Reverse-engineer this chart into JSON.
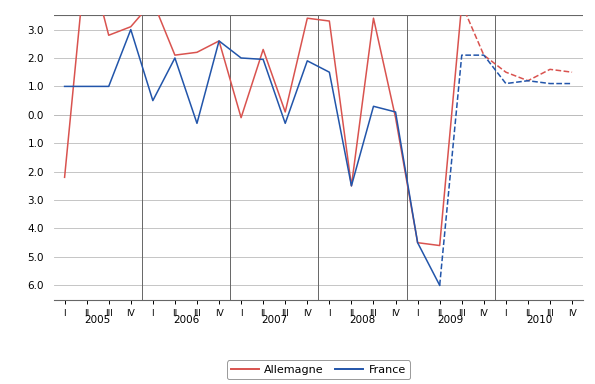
{
  "allemagne_color": "#d9534f",
  "france_color": "#2255aa",
  "background_color": "#ffffff",
  "grid_color": "#bbbbbb",
  "ylim": [
    -6.5,
    3.5
  ],
  "ytick_positions": [
    3.0,
    2.0,
    1.0,
    0.0,
    -1.0,
    -2.0,
    -3.0,
    -4.0,
    -5.0,
    -6.0
  ],
  "ytick_labels": [
    "3.0",
    "2.0",
    "1.0",
    "0.0",
    "1.0",
    "2.0",
    "3.0",
    "4.0",
    "5.0",
    "6.0"
  ],
  "allemagne_solid_x": [
    0,
    1,
    2,
    3,
    4,
    5,
    6,
    7,
    8,
    9,
    10,
    11,
    12,
    13,
    14,
    15,
    16,
    17,
    18
  ],
  "allemagne_solid_y": [
    -2.2,
    5.8,
    2.8,
    3.1,
    4.0,
    2.1,
    2.2,
    2.6,
    -0.1,
    2.3,
    0.1,
    3.4,
    3.3,
    -2.5,
    3.4,
    -0.1,
    -4.5,
    -4.6,
    3.9
  ],
  "allemagne_dashed_x": [
    18,
    19,
    20,
    21,
    22,
    23
  ],
  "allemagne_dashed_y": [
    3.9,
    2.1,
    1.5,
    1.2,
    1.6,
    1.5
  ],
  "france_solid_x": [
    0,
    1,
    2,
    3,
    4,
    5,
    6,
    7,
    8,
    9,
    10,
    11,
    12,
    13,
    14,
    15,
    16,
    17
  ],
  "france_solid_y": [
    1.0,
    1.0,
    1.0,
    3.0,
    0.5,
    2.0,
    -0.3,
    2.6,
    2.0,
    1.95,
    -0.3,
    1.9,
    1.5,
    -2.5,
    0.3,
    0.1,
    -4.5,
    -6.0
  ],
  "france_dashed_x": [
    17,
    18,
    19,
    20,
    21,
    22,
    23
  ],
  "france_dashed_y": [
    -6.0,
    2.1,
    2.1,
    1.1,
    1.2,
    1.1,
    1.1
  ],
  "year_sep_positions": [
    3.5,
    7.5,
    11.5,
    15.5,
    19.5
  ],
  "year_labels": [
    "2005",
    "2006",
    "2007",
    "2008",
    "2009",
    "2010"
  ],
  "year_label_xpos": [
    1.5,
    5.5,
    9.5,
    13.5,
    17.5,
    21.5
  ],
  "quarter_labels": [
    "I",
    "II",
    "III",
    "IV",
    "I",
    "II",
    "III",
    "IV",
    "I",
    "II",
    "III",
    "IV",
    "I",
    "II",
    "III",
    "IV",
    "I",
    "II",
    "III",
    "IV",
    "I",
    "II",
    "III",
    "IV"
  ]
}
